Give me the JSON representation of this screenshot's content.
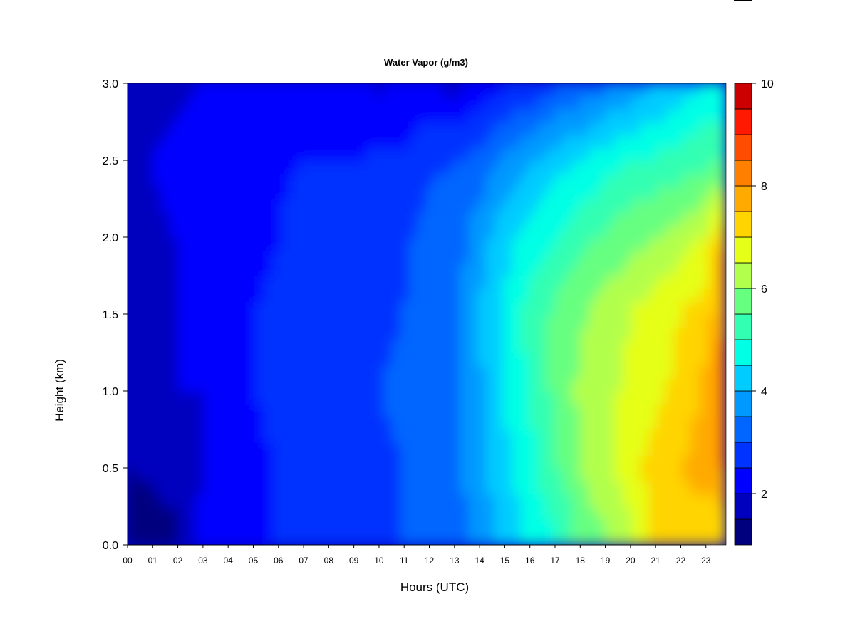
{
  "chart_data": {
    "type": "heatmap",
    "title": "Water Vapor (g/m3)",
    "xlabel": "Hours (UTC)",
    "ylabel": "Height (km)",
    "x_ticks": [
      "00",
      "01",
      "02",
      "03",
      "04",
      "05",
      "06",
      "07",
      "08",
      "09",
      "10",
      "11",
      "12",
      "13",
      "14",
      "15",
      "16",
      "17",
      "18",
      "19",
      "20",
      "21",
      "22",
      "23"
    ],
    "y_ticks": [
      "0.0",
      "0.5",
      "1.0",
      "1.5",
      "2.0",
      "2.5",
      "3.0"
    ],
    "xlim": [
      0,
      23.8
    ],
    "ylim": [
      0.0,
      3.0
    ],
    "colorbar": {
      "levels": [
        1,
        1.5,
        2,
        2.5,
        3,
        3.5,
        4,
        4.5,
        5,
        5.5,
        6,
        6.5,
        7,
        7.5,
        8,
        8.5,
        9,
        9.5,
        10
      ],
      "colors": [
        "#00007F",
        "#0000BF",
        "#0000FF",
        "#0033FF",
        "#0066FF",
        "#0099FF",
        "#00CCFF",
        "#00FFE5",
        "#33FFB2",
        "#66FF80",
        "#B2FF4C",
        "#E5FF19",
        "#FFD400",
        "#FFAA00",
        "#FF7F00",
        "#FF4C00",
        "#FF1900",
        "#CC0000",
        "#7F0000"
      ],
      "tick_labels": [
        "2",
        "4",
        "6",
        "8",
        "10"
      ],
      "tick_values": [
        2,
        4,
        6,
        8,
        10
      ]
    },
    "heights_km": [
      0.1,
      0.5,
      1.0,
      1.5,
      2.0,
      2.5,
      3.0
    ],
    "hours": [
      0,
      1,
      2,
      3,
      4,
      5,
      6,
      7,
      8,
      9,
      10,
      11,
      12,
      13,
      14,
      15,
      16,
      17,
      18,
      19,
      20,
      21,
      22,
      23,
      23.8
    ],
    "values": [
      [
        1.3,
        1.3,
        1.4,
        2.1,
        2.2,
        2.2,
        2.6,
        2.7,
        2.7,
        2.8,
        2.9,
        3.0,
        3.2,
        3.3,
        3.7,
        4.2,
        4.6,
        5.0,
        5.6,
        6.0,
        6.4,
        7.3,
        7.4,
        7.0,
        7.0
      ],
      [
        1.5,
        1.6,
        1.8,
        2.0,
        2.1,
        2.2,
        2.6,
        2.8,
        2.8,
        2.8,
        2.9,
        3.0,
        3.2,
        3.3,
        3.8,
        4.4,
        4.8,
        5.4,
        6.0,
        6.4,
        6.8,
        7.2,
        7.5,
        7.8,
        8.2
      ],
      [
        1.9,
        1.9,
        2.0,
        2.0,
        2.2,
        2.5,
        2.7,
        3.0,
        3.0,
        3.0,
        3.0,
        3.1,
        3.4,
        3.3,
        3.9,
        4.5,
        5.0,
        5.6,
        6.1,
        6.4,
        6.6,
        6.9,
        7.1,
        7.6,
        8.6
      ],
      [
        1.9,
        1.9,
        2.0,
        2.1,
        2.3,
        2.5,
        2.6,
        2.7,
        2.8,
        2.8,
        2.9,
        3.0,
        3.3,
        3.3,
        4.0,
        4.6,
        5.2,
        5.6,
        5.9,
        6.2,
        6.5,
        6.8,
        7.0,
        7.3,
        7.9
      ],
      [
        1.9,
        1.9,
        2.0,
        2.1,
        2.3,
        2.3,
        2.5,
        2.7,
        2.7,
        2.7,
        2.8,
        2.9,
        3.2,
        3.2,
        3.8,
        4.3,
        4.7,
        5.0,
        5.3,
        5.6,
        5.8,
        6.0,
        6.2,
        6.6,
        7.7
      ],
      [
        1.8,
        2.0,
        2.2,
        2.4,
        2.5,
        2.5,
        2.4,
        2.5,
        2.5,
        2.5,
        2.6,
        2.6,
        2.9,
        3.0,
        3.2,
        3.6,
        3.9,
        4.3,
        4.5,
        4.8,
        5.0,
        5.1,
        5.2,
        5.4,
        5.5
      ],
      [
        1.9,
        1.9,
        1.8,
        2.0,
        2.0,
        2.0,
        2.0,
        2.0,
        2.0,
        2.1,
        1.9,
        2.1,
        2.2,
        1.8,
        2.2,
        2.4,
        2.6,
        2.9,
        3.1,
        3.4,
        3.6,
        4.0,
        4.2,
        4.5,
        4.5
      ]
    ]
  }
}
